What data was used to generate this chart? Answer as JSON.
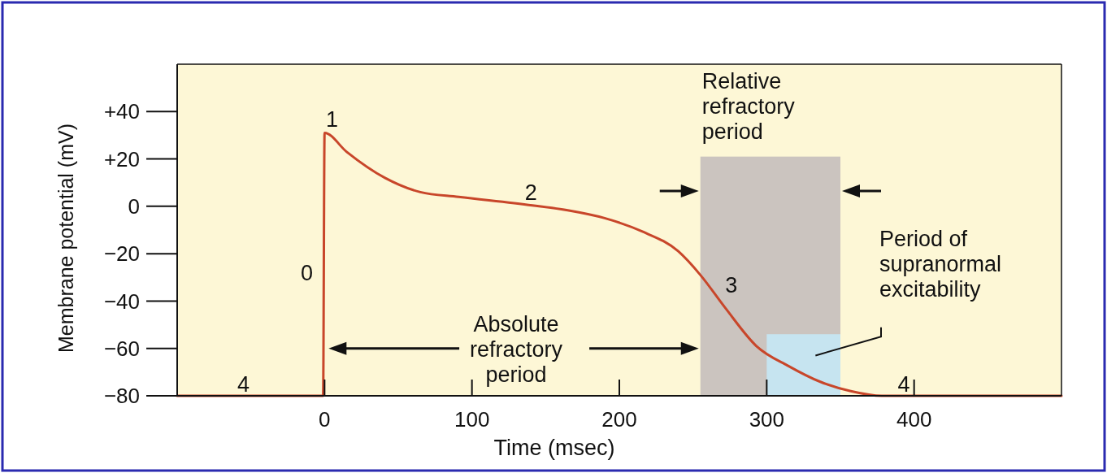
{
  "chart_data": {
    "type": "line",
    "xlabel": "Time (msec)",
    "ylabel": "Membrane potential (mV)",
    "xlim": [
      -100,
      500
    ],
    "ylim": [
      -80,
      60
    ],
    "xticks": [
      0,
      100,
      200,
      300,
      400
    ],
    "yticks": [
      {
        "value": 40,
        "label": "+40"
      },
      {
        "value": 20,
        "label": "+20"
      },
      0,
      {
        "value": -20,
        "label": "−20"
      },
      {
        "value": -40,
        "label": "−40"
      },
      {
        "value": -60,
        "label": "−60"
      },
      {
        "value": -80,
        "label": "−80"
      }
    ],
    "series": [
      {
        "color": "#c8462a",
        "x": [
          -100,
          -1,
          0,
          15,
          41,
          65,
          91,
          141,
          165,
          190,
          215,
          240,
          255,
          272,
          293,
          315,
          336,
          357,
          378,
          500
        ],
        "values": [
          -80,
          -80,
          31,
          23,
          12,
          6,
          4,
          0.4,
          -1.7,
          -5,
          -10.5,
          -19,
          -29,
          -43,
          -59,
          -67.5,
          -74,
          -78,
          -80,
          -80
        ]
      }
    ],
    "bands": [
      {
        "axis": "x",
        "from": 255,
        "to": 350,
        "label": "Relative refractory period",
        "color": "#cbc4bf"
      },
      {
        "axis": "x",
        "from": 300,
        "to": 350,
        "label": "Period of supranormal excitability",
        "color": "#c6e4f0"
      }
    ],
    "annotations": [
      "0",
      "1",
      "2",
      "3",
      "4",
      "4",
      "Absolute refractory period"
    ],
    "grid": false,
    "marker": "none",
    "line_style": "solid"
  }
}
